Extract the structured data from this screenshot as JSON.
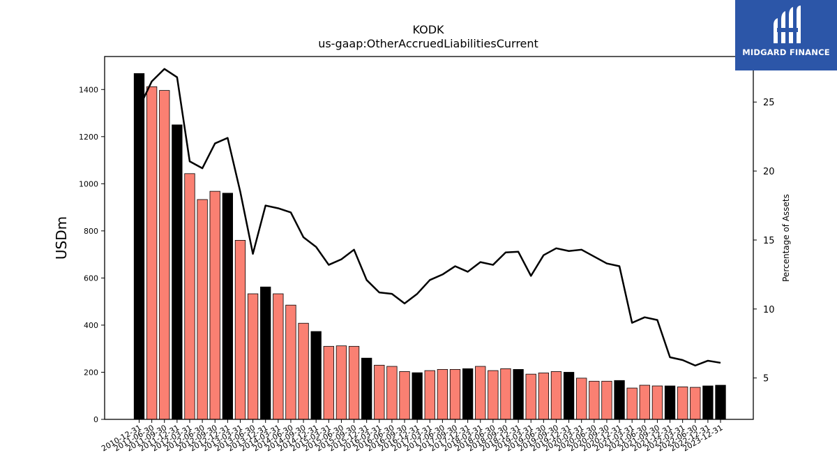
{
  "logo": {
    "brand_text": "MIDGARD FINANCE",
    "icon": "midgard-logo-icon",
    "bg_color": "#2c56a8"
  },
  "chart_data": {
    "type": "bar",
    "title": "KODK",
    "subtitle": "us-gaap:OtherAccruedLiabilitiesCurrent",
    "ylabel": "USDm",
    "y2label": "Percentage of Assets",
    "ylim": [
      0,
      1540
    ],
    "y2lim": [
      2.0,
      28.3
    ],
    "yticks": [
      0,
      200,
      400,
      600,
      800,
      1000,
      1200,
      1400
    ],
    "y2ticks": [
      5,
      10,
      15,
      20,
      25
    ],
    "grid": false,
    "colors": {
      "annual": "#000000",
      "quarterly": "#fa8072",
      "line": "#000000"
    },
    "categories": [
      "2010-12-31",
      "2011-06-30",
      "2011-09-30",
      "2011-12-31",
      "2012-03-31",
      "2012-06-30",
      "2012-09-30",
      "2012-12-31",
      "2013-03-31",
      "2013-06-30",
      "2013-12-31",
      "2014-03-31",
      "2014-06-30",
      "2014-09-30",
      "2014-12-31",
      "2015-03-31",
      "2015-06-30",
      "2015-09-30",
      "2015-12-31",
      "2016-03-31",
      "2016-06-30",
      "2016-09-30",
      "2016-12-31",
      "2017-03-31",
      "2017-06-30",
      "2017-09-30",
      "2017-12-31",
      "2018-03-31",
      "2018-06-30",
      "2018-09-30",
      "2018-12-31",
      "2019-03-31",
      "2019-06-30",
      "2019-09-30",
      "2019-12-31",
      "2020-03-31",
      "2020-06-30",
      "2020-09-30",
      "2020-12-31",
      "2021-03-31",
      "2021-06-30",
      "2021-09-30",
      "2021-12-31",
      "2022-03-31",
      "2022-06-30",
      "2022-12-31",
      "2023-12-31"
    ],
    "values": [
      1468,
      1412,
      1396,
      1250,
      1043,
      933,
      968,
      960,
      760,
      533,
      562,
      533,
      485,
      408,
      373,
      310,
      312,
      310,
      260,
      230,
      225,
      203,
      198,
      207,
      212,
      212,
      215,
      225,
      207,
      215,
      212,
      192,
      197,
      203,
      200,
      175,
      162,
      162,
      165,
      133,
      145,
      142,
      142,
      138,
      136,
      142,
      145
    ],
    "annual": [
      true,
      false,
      false,
      true,
      false,
      false,
      false,
      true,
      false,
      false,
      true,
      false,
      false,
      false,
      true,
      false,
      false,
      false,
      true,
      false,
      false,
      false,
      true,
      false,
      false,
      false,
      true,
      false,
      false,
      false,
      true,
      false,
      false,
      false,
      true,
      false,
      false,
      false,
      true,
      false,
      false,
      false,
      true,
      false,
      false,
      true,
      true
    ],
    "pct_assets": [
      24.6,
      26.5,
      27.4,
      26.8,
      20.7,
      20.2,
      22.0,
      22.4,
      18.5,
      14.0,
      17.5,
      17.3,
      17.0,
      15.2,
      14.5,
      13.2,
      13.6,
      14.3,
      12.1,
      11.2,
      11.1,
      10.4,
      11.1,
      12.1,
      12.5,
      13.1,
      12.7,
      13.4,
      13.2,
      14.1,
      14.15,
      12.4,
      13.9,
      14.4,
      14.2,
      14.3,
      13.8,
      13.3,
      13.1,
      9.0,
      9.4,
      9.2,
      6.5,
      6.3,
      5.9,
      6.25,
      6.1
    ]
  }
}
